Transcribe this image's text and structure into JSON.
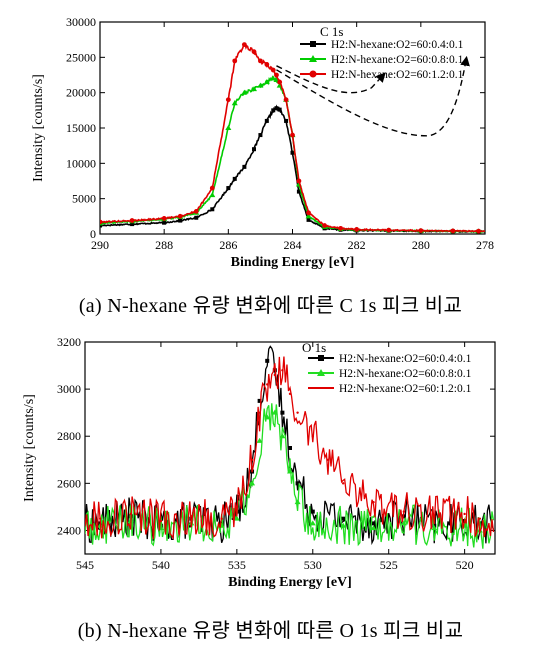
{
  "captions": {
    "a": "(a) N-hexane 유량 변화에 따른 C 1s 피크 비교",
    "b": "(b) N-hexane 유량 변화에 따른 O 1s 피크 비교"
  },
  "chart_data": [
    {
      "type": "line",
      "title": "C 1s",
      "xlabel": "Binding Energy [eV]",
      "ylabel": "Intensity [counts/s]",
      "xlim": [
        290,
        278
      ],
      "ylim": [
        0,
        30000
      ],
      "x_reversed": true,
      "xticks": [
        290,
        288,
        286,
        284,
        282,
        280,
        278
      ],
      "yticks": [
        0,
        5000,
        10000,
        15000,
        20000,
        25000,
        30000
      ],
      "legend_position": "top-right",
      "annotations": [
        "arrows from shoulder near 284.5 eV toward legend entries"
      ],
      "series": [
        {
          "name": "H2:N-hexane:O2=60:0.4:0.1",
          "color": "#000000",
          "marker": "square",
          "x": [
            290,
            289,
            288,
            287.5,
            287,
            286.5,
            286,
            285.8,
            285.5,
            285.2,
            285,
            284.8,
            284.6,
            284.5,
            284.4,
            284.2,
            284,
            283.8,
            283.5,
            283,
            282.5,
            282,
            281,
            280,
            279,
            278.2
          ],
          "y": [
            1200,
            1400,
            1600,
            1900,
            2300,
            3500,
            6500,
            7800,
            9500,
            12000,
            14000,
            16000,
            17500,
            17800,
            17600,
            16000,
            11500,
            6000,
            2000,
            800,
            600,
            500,
            450,
            400,
            380,
            350
          ]
        },
        {
          "name": "H2:N-hexane:O2=60:0.8:0.1",
          "color": "#00cc00",
          "marker": "triangle",
          "x": [
            290,
            289,
            288,
            287.5,
            287,
            286.5,
            286,
            285.8,
            285.5,
            285.2,
            285,
            284.8,
            284.6,
            284.5,
            284.4,
            284.2,
            284,
            283.8,
            283.5,
            283,
            282.5,
            282,
            281,
            280,
            279,
            278.2
          ],
          "y": [
            1500,
            1800,
            2100,
            2400,
            3000,
            5500,
            15000,
            18500,
            20000,
            20500,
            21000,
            21500,
            22000,
            21800,
            21000,
            19000,
            14000,
            7000,
            2500,
            1000,
            700,
            600,
            500,
            450,
            400,
            380
          ]
        },
        {
          "name": "H2:N-hexane:O2=60:1.2:0.1",
          "color": "#e00000",
          "marker": "circle",
          "x": [
            290,
            289,
            288,
            287.5,
            287,
            286.5,
            286,
            285.8,
            285.5,
            285.2,
            285,
            284.8,
            284.6,
            284.5,
            284.4,
            284.2,
            284,
            283.8,
            283.5,
            283,
            282.5,
            282,
            281,
            280,
            279,
            278.2
          ],
          "y": [
            1700,
            1900,
            2200,
            2500,
            3200,
            6500,
            19000,
            24500,
            26800,
            25800,
            24500,
            24000,
            23200,
            22500,
            21500,
            19000,
            14000,
            7500,
            3000,
            1200,
            800,
            650,
            550,
            480,
            430,
            400
          ]
        }
      ]
    },
    {
      "type": "line",
      "title": "O 1s",
      "xlabel": "Binding Energy [eV]",
      "ylabel": "Intensity [counts/s]",
      "xlim": [
        545,
        518
      ],
      "ylim": [
        2300,
        3200
      ],
      "x_reversed": true,
      "xticks": [
        545,
        540,
        535,
        530,
        525,
        520
      ],
      "yticks": [
        2400,
        2600,
        2800,
        3000,
        3200
      ],
      "legend_position": "top-right",
      "series": [
        {
          "name": "H2:N-hexane:O2=60:0.4:0.1",
          "color": "#000000",
          "marker": "square",
          "x": [
            544,
            542,
            540,
            538,
            536,
            535,
            534,
            533.5,
            533,
            532.5,
            532,
            531.5,
            531,
            530,
            528,
            526,
            524,
            522,
            520,
            519
          ],
          "y": [
            2430,
            2460,
            2420,
            2450,
            2430,
            2480,
            2650,
            2950,
            3120,
            3080,
            2900,
            2750,
            2600,
            2480,
            2450,
            2430,
            2460,
            2420,
            2440,
            2430
          ]
        },
        {
          "name": "H2:N-hexane:O2=60:0.8:0.1",
          "color": "#22dd22",
          "marker": "triangle",
          "x": [
            544,
            542,
            540,
            538,
            536,
            535,
            534,
            533.5,
            533,
            532.5,
            532,
            531.5,
            531,
            530,
            528,
            526,
            524,
            522,
            520,
            519
          ],
          "y": [
            2420,
            2440,
            2410,
            2430,
            2420,
            2450,
            2600,
            2780,
            2880,
            2900,
            2800,
            2650,
            2520,
            2430,
            2420,
            2410,
            2430,
            2410,
            2420,
            2400
          ]
        },
        {
          "name": "H2:N-hexane:O2=60:1.2:0.1",
          "color": "#e00000",
          "marker": "line",
          "x": [
            544,
            542,
            540,
            538,
            536,
            535,
            534,
            533.5,
            533,
            532.5,
            532,
            531.5,
            531,
            530,
            529,
            528,
            526,
            524,
            522,
            520,
            519
          ],
          "y": [
            2450,
            2470,
            2440,
            2460,
            2450,
            2500,
            2700,
            2900,
            3020,
            3060,
            3080,
            2980,
            2900,
            2800,
            2700,
            2600,
            2520,
            2480,
            2460,
            2470,
            2450
          ]
        }
      ]
    }
  ]
}
